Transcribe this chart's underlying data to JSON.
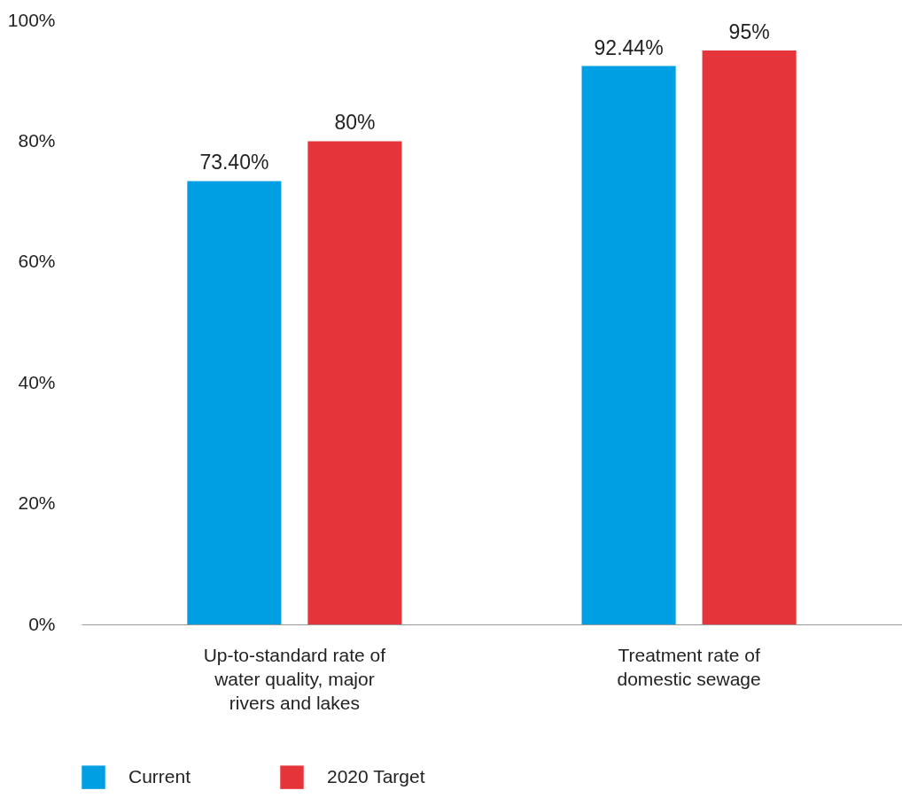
{
  "chart_data": {
    "type": "bar",
    "categories": [
      "Up-to-standard rate of water quality, major rivers and lakes",
      "Treatment rate of domestic sewage"
    ],
    "series": [
      {
        "name": "Current",
        "color": "#009fe3",
        "values": [
          73.4,
          92.44
        ],
        "value_labels": [
          "73.40%",
          "92.44%"
        ]
      },
      {
        "name": "2020 Target",
        "color": "#e5353a",
        "values": [
          80,
          95
        ],
        "value_labels": [
          "80%",
          "95%"
        ]
      }
    ],
    "ylim": [
      0,
      100
    ],
    "yticks": [
      {
        "value": 0,
        "label": "0%"
      },
      {
        "value": 20,
        "label": "20%"
      },
      {
        "value": 40,
        "label": "40%"
      },
      {
        "value": 60,
        "label": "60%"
      },
      {
        "value": 80,
        "label": "80%"
      },
      {
        "value": 100,
        "label": "100%"
      }
    ],
    "grid": false,
    "legend": "bottom"
  }
}
